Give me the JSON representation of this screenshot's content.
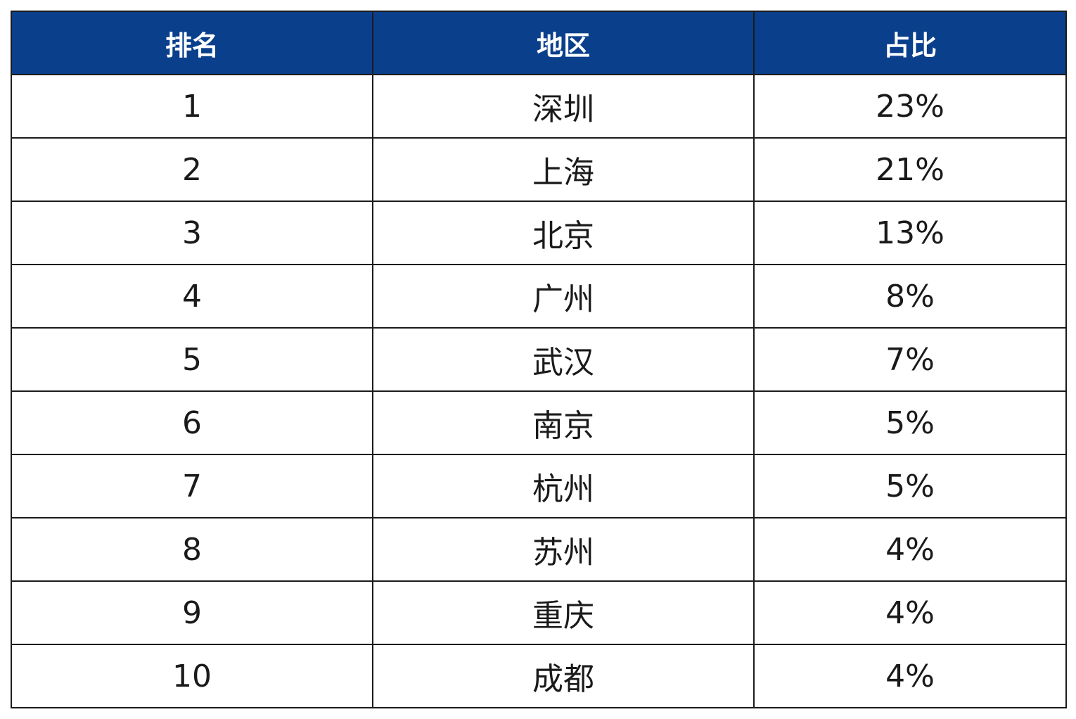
{
  "table": {
    "header": {
      "rank": "排名",
      "region": "地区",
      "share": "占比"
    },
    "rows": [
      {
        "rank": "1",
        "region": "深圳",
        "share": "23%"
      },
      {
        "rank": "2",
        "region": "上海",
        "share": "21%"
      },
      {
        "rank": "3",
        "region": "北京",
        "share": "13%"
      },
      {
        "rank": "4",
        "region": "广州",
        "share": "8%"
      },
      {
        "rank": "5",
        "region": "武汉",
        "share": "7%"
      },
      {
        "rank": "6",
        "region": "南京",
        "share": "5%"
      },
      {
        "rank": "7",
        "region": "杭州",
        "share": "5%"
      },
      {
        "rank": "8",
        "region": "苏州",
        "share": "4%"
      },
      {
        "rank": "9",
        "region": "重庆",
        "share": "4%"
      },
      {
        "rank": "10",
        "region": "成都",
        "share": "4%"
      }
    ]
  },
  "colors": {
    "header_background": "#0a3f8c",
    "header_text": "#ffffff",
    "border": "#1b1b1b",
    "body_text": "#1a1a1a"
  }
}
